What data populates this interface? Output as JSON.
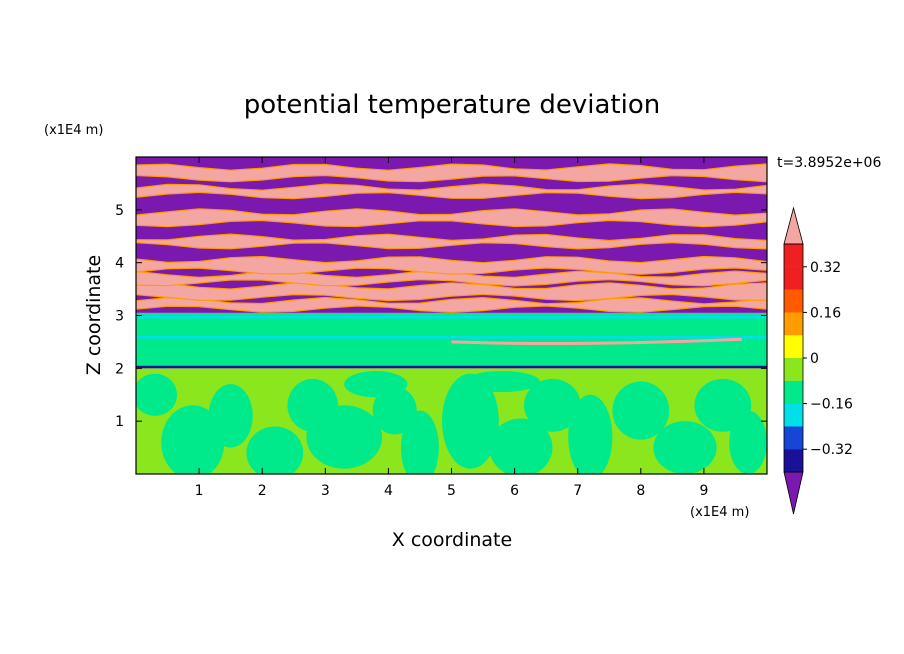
{
  "chart_data": {
    "type": "heatmap",
    "title": "potential temperature deviation",
    "xlabel": "X coordinate",
    "ylabel": "Z coordinate",
    "x_unit": "(x1E4 m)",
    "y_unit": "(x1E4 m)",
    "time_label": "t=3.8952e+06",
    "xlim": [
      0,
      10
    ],
    "ylim": [
      0,
      6
    ],
    "x_ticks": [
      "1",
      "2",
      "3",
      "4",
      "5",
      "6",
      "7",
      "8",
      "9"
    ],
    "y_ticks": [
      "1",
      "2",
      "3",
      "4",
      "5"
    ],
    "colorbar": {
      "levels": [
        -0.4,
        -0.32,
        -0.24,
        -0.16,
        -0.08,
        0,
        0.08,
        0.16,
        0.24,
        0.32,
        0.4
      ],
      "tick_labels": [
        "0.32",
        "0.16",
        "0",
        "−0.16",
        "−0.32"
      ],
      "tick_values": [
        0.32,
        0.16,
        0,
        -0.16,
        -0.32
      ],
      "colors": [
        "#7a18b0",
        "#1a1296",
        "#1546d8",
        "#00e0e8",
        "#00e98a",
        "#8ce61e",
        "#ffff00",
        "#ff9c00",
        "#ff5a00",
        "#f02020",
        "#f4a6a2"
      ],
      "extend": "both"
    },
    "regions": [
      {
        "z_range": [
          0,
          2.0
        ],
        "pattern": "mixed",
        "values": [
          -0.04,
          0.04
        ]
      },
      {
        "z_range": [
          2.0,
          2.05
        ],
        "pattern": "thin band",
        "value": -0.3
      },
      {
        "z_range": [
          2.05,
          3.05
        ],
        "pattern": "uniform",
        "value": -0.04
      },
      {
        "z_range": [
          3.05,
          6.0
        ],
        "pattern": "alternating layers",
        "values": [
          -0.45,
          0.45
        ]
      }
    ]
  }
}
